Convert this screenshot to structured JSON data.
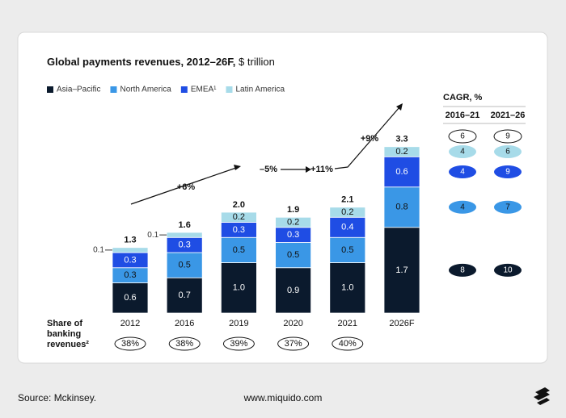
{
  "chart_data": {
    "type": "stacked-bar",
    "title": "Global payments revenues, 2012–26F,",
    "unit": "$ trillion",
    "categories": [
      "2012",
      "2016",
      "2019",
      "2020",
      "2021",
      "2026F"
    ],
    "series": [
      {
        "name": "Asia–Pacific",
        "color": "#0b1a2d",
        "values": [
          0.6,
          0.7,
          1.0,
          0.9,
          1.0,
          1.7
        ],
        "value_labels": [
          "0.6",
          "0.7",
          "1.0",
          "0.9",
          "1.0",
          "1.7"
        ]
      },
      {
        "name": "North America",
        "color": "#3a97e6",
        "values": [
          0.3,
          0.5,
          0.5,
          0.5,
          0.5,
          0.8
        ],
        "value_labels": [
          "0.3",
          "0.5",
          "0.5",
          "0.5",
          "0.5",
          "0.8"
        ]
      },
      {
        "name": "EMEA¹",
        "color": "#1f4de4",
        "values": [
          0.3,
          0.3,
          0.3,
          0.3,
          0.4,
          0.6
        ],
        "value_labels": [
          "0.3",
          "0.3",
          "0.3",
          "0.3",
          "0.4",
          "0.6"
        ]
      },
      {
        "name": "Latin America",
        "color": "#a7dbe9",
        "values": [
          0.1,
          0.1,
          0.2,
          0.2,
          0.2,
          0.2
        ],
        "value_labels": [
          "0.1",
          "0.1",
          "0.2",
          "0.2",
          "0.2",
          "0.2"
        ]
      }
    ],
    "totals": {
      "values": [
        1.3,
        1.6,
        2.0,
        1.9,
        2.1,
        3.3
      ],
      "value_labels": [
        "1.3",
        "1.6",
        "2.0",
        "1.9",
        "2.1",
        "3.3"
      ]
    },
    "annotations": [
      "+6%",
      "–5%",
      "+11%",
      "+9%"
    ],
    "share": {
      "label": [
        "Share of",
        "banking",
        "revenues²"
      ],
      "values": [
        38,
        38,
        39,
        37,
        40,
        null
      ],
      "value_labels": [
        "38%",
        "38%",
        "39%",
        "37%",
        "40%",
        null
      ]
    },
    "cagr": {
      "title": "CAGR, %",
      "columns": [
        "2016–21",
        "2021–26"
      ],
      "total": [
        6,
        9
      ],
      "series": [
        [
          8,
          10
        ],
        [
          4,
          7
        ],
        [
          4,
          9
        ],
        [
          4,
          6
        ]
      ]
    }
  },
  "footer": {
    "source": "Source: Mckinsey.",
    "site": "www.miquido.com"
  }
}
